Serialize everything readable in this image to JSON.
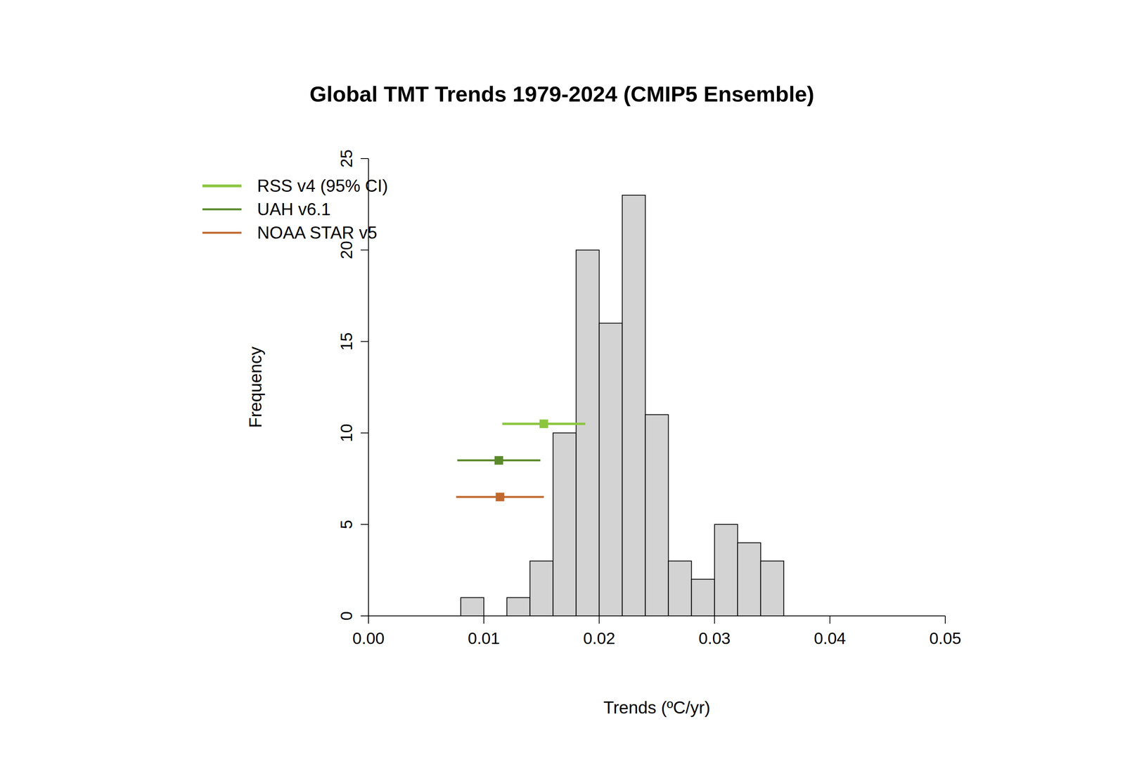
{
  "chart_data": {
    "type": "histogram",
    "title": "Global TMT Trends 1979-2024 (CMIP5 Ensemble)",
    "x_label": "Trends (ºC/yr)",
    "y_label": "Frequency",
    "bins": [
      0.008,
      0.01,
      0.012,
      0.014,
      0.016,
      0.018,
      0.02,
      0.022,
      0.024,
      0.026,
      0.028,
      0.03,
      0.032,
      0.034,
      0.036
    ],
    "counts": [
      1,
      0,
      1,
      3,
      10,
      20,
      16,
      23,
      11,
      3,
      2,
      5,
      4,
      3
    ],
    "color": "#d3d3d3",
    "xlim": [
      0,
      0.05
    ],
    "xticks": [
      {
        "value": 0,
        "label": "0.00"
      },
      0.01,
      0.02,
      0.03,
      0.04,
      0.05
    ],
    "ylim": [
      0,
      25
    ],
    "yticks": [
      0,
      5,
      10,
      15,
      20,
      25
    ],
    "legend": "upper left",
    "series": [
      {
        "name": "RSS v4 (95% CI)",
        "color": "#8cc63f",
        "marker": "square",
        "values": [
          0.0152
        ],
        "y": [
          10.5
        ],
        "ci": [
          [
            0.0116,
            0.0188
          ]
        ]
      },
      {
        "name": "UAH v6.1",
        "color": "#5b8a2b",
        "marker": "square",
        "values": [
          0.0113
        ],
        "y": [
          8.5
        ],
        "ci": [
          [
            0.0077,
            0.0149
          ]
        ]
      },
      {
        "name": "NOAA STAR v5",
        "color": "#c0692f",
        "marker": "square",
        "values": [
          0.0114
        ],
        "y": [
          6.5
        ],
        "ci": [
          [
            0.0076,
            0.0152
          ]
        ]
      }
    ]
  }
}
